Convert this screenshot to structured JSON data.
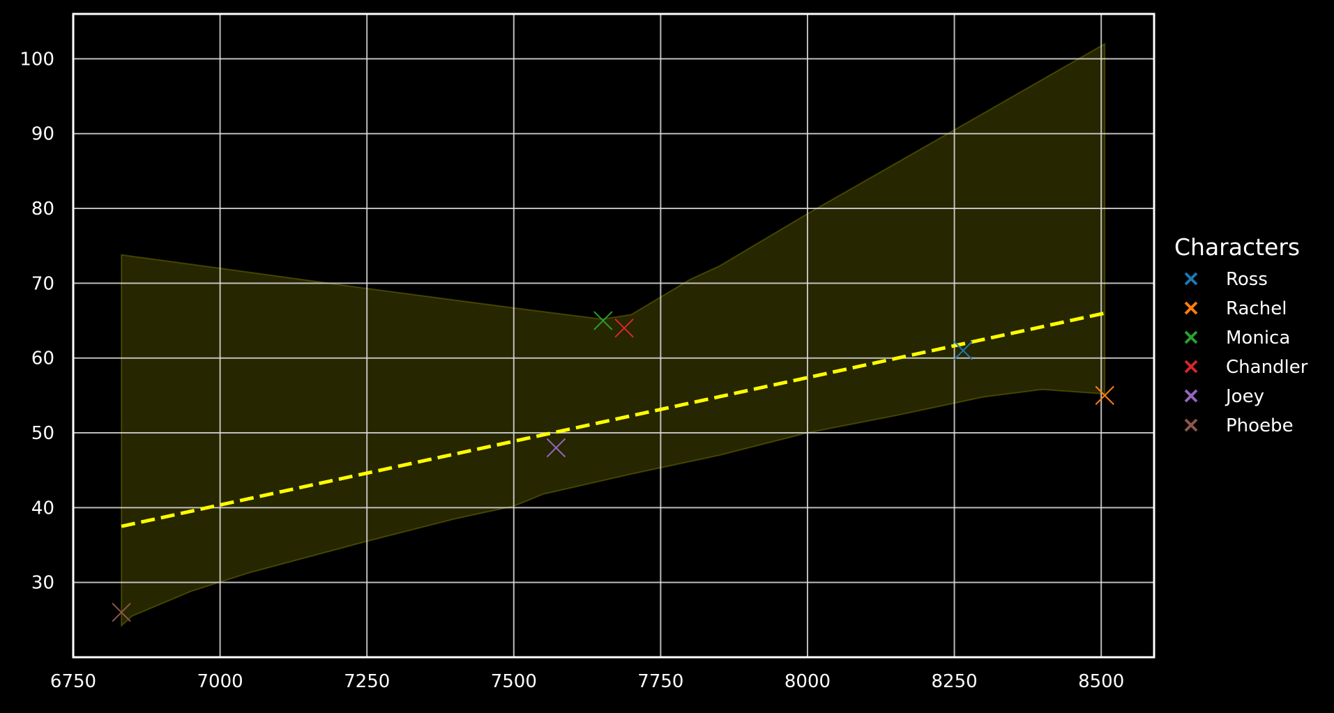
{
  "chart_data": {
    "type": "scatter",
    "title": "",
    "xlabel": "",
    "ylabel": "",
    "xlim": [
      6750,
      8590
    ],
    "ylim": [
      20,
      106
    ],
    "xticks": [
      "6750",
      "7000",
      "7250",
      "7500",
      "7750",
      "8000",
      "8250",
      "8500"
    ],
    "yticks": [
      "30",
      "40",
      "50",
      "60",
      "70",
      "80",
      "90",
      "100"
    ],
    "grid": true,
    "background": "#000000",
    "legend": {
      "title": "Characters",
      "placement": "outside-right"
    },
    "series": [
      {
        "name": "Ross",
        "color": "#1f77b4",
        "points": [
          [
            8265,
            61
          ]
        ]
      },
      {
        "name": "Rachel",
        "color": "#ff7f0e",
        "points": [
          [
            8506,
            55
          ]
        ]
      },
      {
        "name": "Monica",
        "color": "#2ca02c",
        "points": [
          [
            7652,
            65
          ]
        ]
      },
      {
        "name": "Chandler",
        "color": "#d62728",
        "points": [
          [
            7688,
            64
          ]
        ]
      },
      {
        "name": "Joey",
        "color": "#9467bd",
        "points": [
          [
            7572,
            48
          ]
        ]
      },
      {
        "name": "Phoebe",
        "color": "#8c564b",
        "points": [
          [
            6832,
            26
          ]
        ]
      }
    ],
    "trendline": {
      "style": "dashed",
      "color": "#ffff00",
      "points": [
        [
          6832,
          37.5
        ],
        [
          8506,
          66
        ]
      ]
    },
    "confidence_band": {
      "color": "#ffff00",
      "opacity": 0.15,
      "upper": [
        [
          6832,
          73.8
        ],
        [
          7000,
          72
        ],
        [
          7250,
          69.3
        ],
        [
          7500,
          66.7
        ],
        [
          7650,
          65.2
        ],
        [
          7700,
          65.8
        ],
        [
          7800,
          70.5
        ],
        [
          7850,
          72.3
        ],
        [
          8000,
          79.3
        ],
        [
          8250,
          90.5
        ],
        [
          8506,
          102
        ]
      ],
      "lower": [
        [
          6832,
          24.2
        ],
        [
          6850,
          25.5
        ],
        [
          6950,
          28.8
        ],
        [
          7050,
          31.3
        ],
        [
          7250,
          35.5
        ],
        [
          7400,
          38.5
        ],
        [
          7500,
          40.2
        ],
        [
          7550,
          41.8
        ],
        [
          7700,
          44.5
        ],
        [
          7850,
          47
        ],
        [
          8000,
          50
        ],
        [
          8150,
          52.3
        ],
        [
          8300,
          54.8
        ],
        [
          8400,
          55.8
        ],
        [
          8506,
          55.2
        ]
      ]
    }
  }
}
